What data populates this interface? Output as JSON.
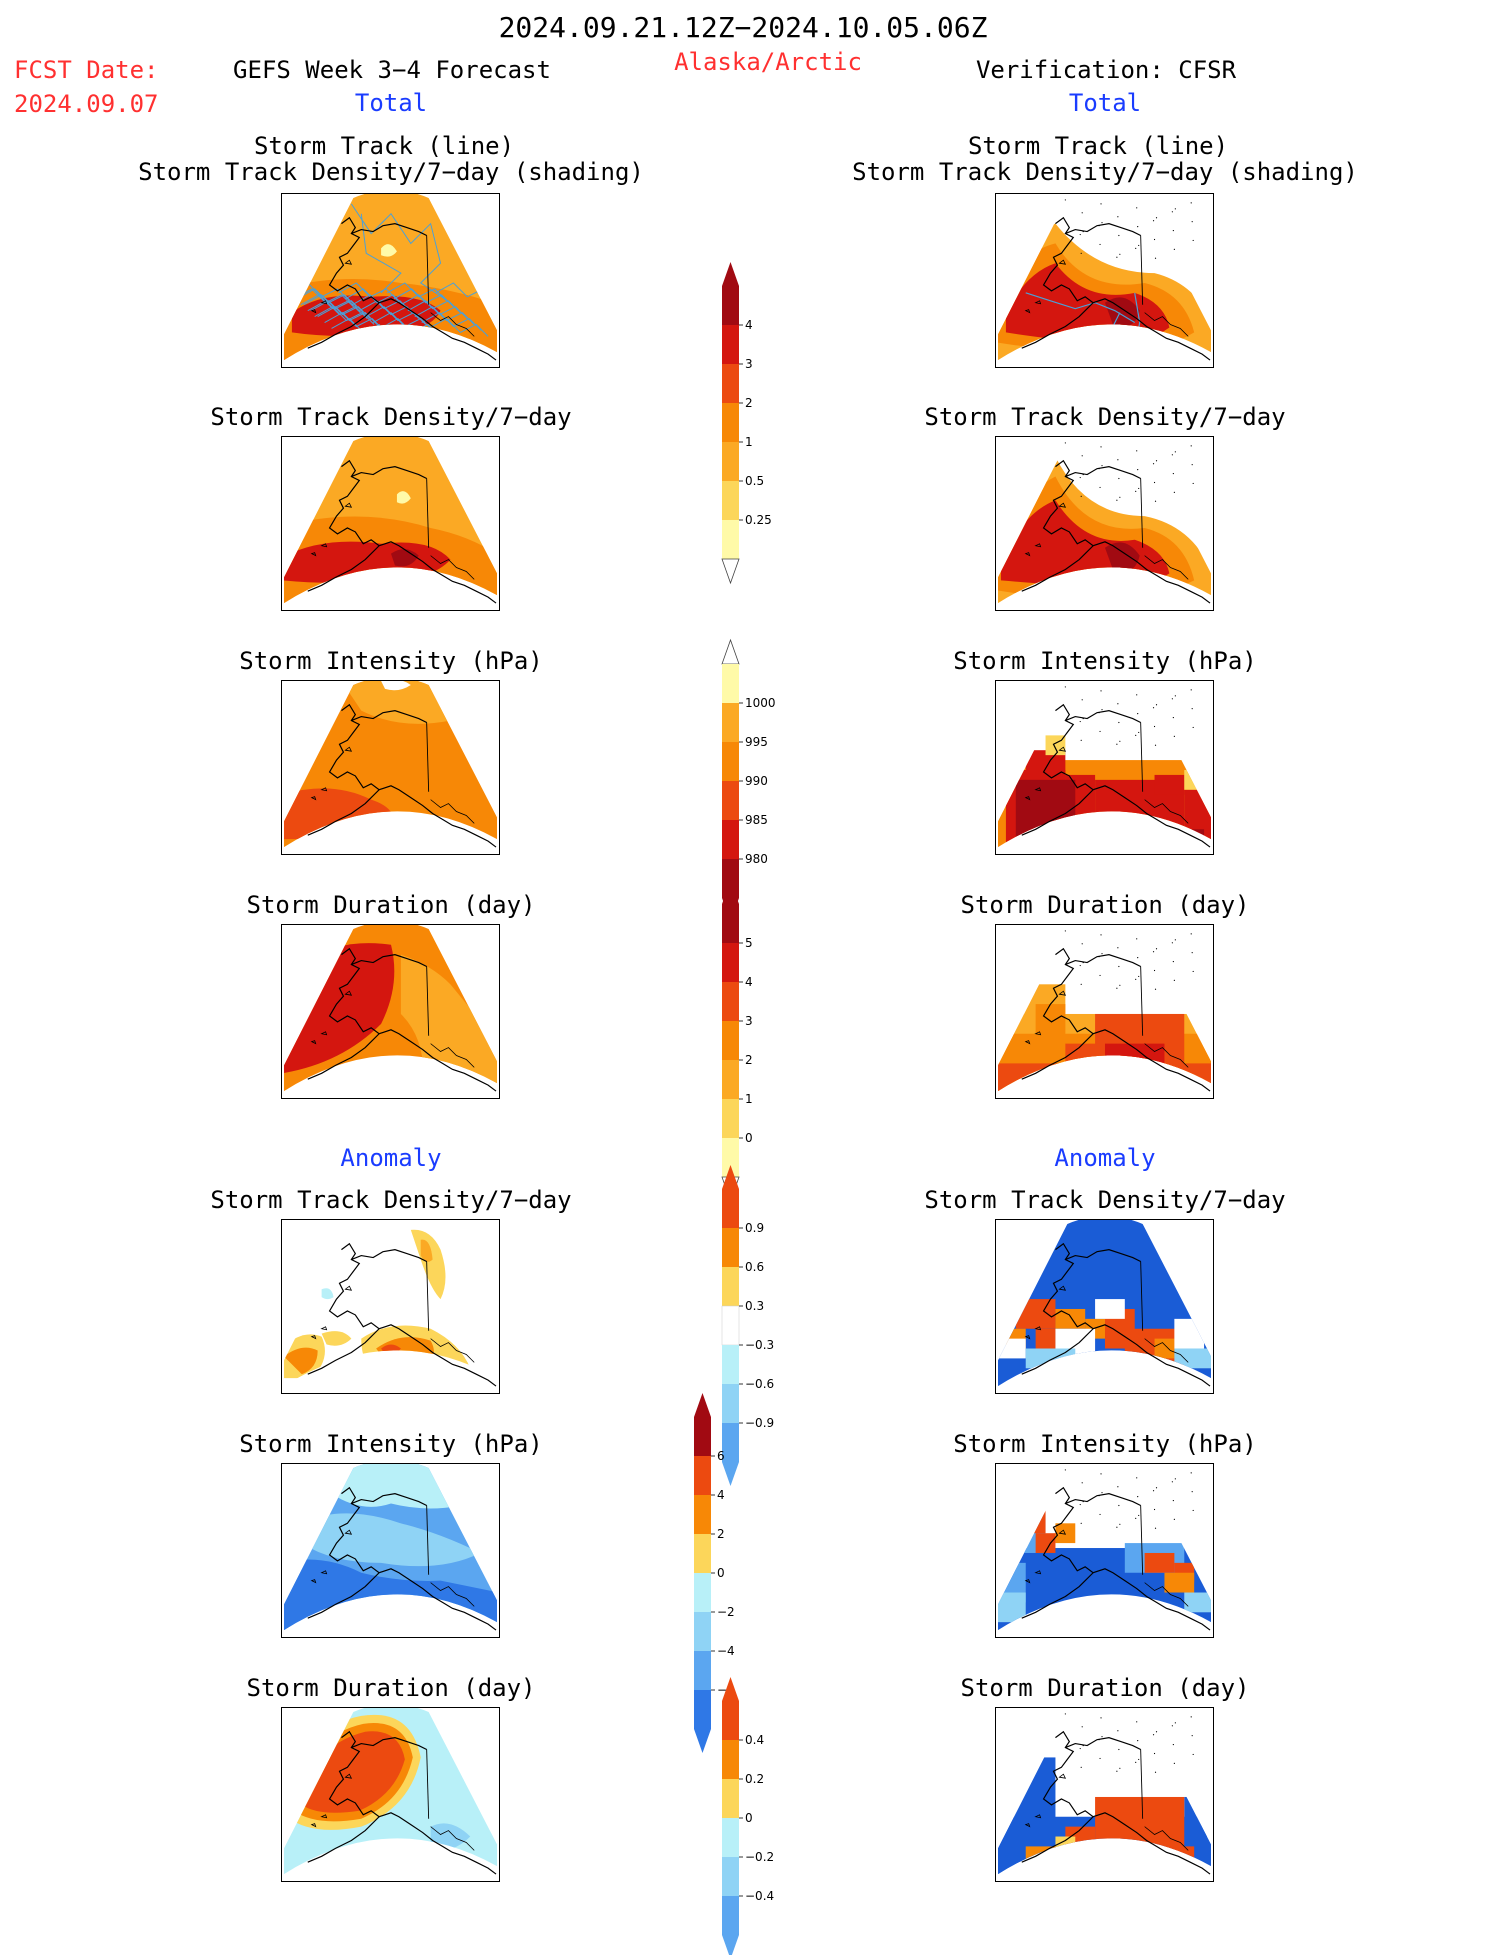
{
  "header": {
    "period": "2024.09.21.12Z−2024.10.05.06Z",
    "fcst_label": "FCST Date:",
    "fcst_date": "2024.09.07",
    "forecast_title": "GEFS Week 3−4 Forecast",
    "region": "Alaska/Arctic",
    "verification_title": "Verification: CFSR",
    "left_total": "Total",
    "right_total": "Total",
    "left_anomaly": "Anomaly",
    "right_anomaly": "Anomaly"
  },
  "titles": {
    "track_line": "Storm Track (line)",
    "track_shading": "Storm Track Density/7−day (shading)",
    "density": "Storm Track Density/7−day",
    "intensity": "Storm Intensity (hPa)",
    "duration": "Storm Duration (day)"
  },
  "colors": {
    "yellow_pale": "#fffaa8",
    "yellow": "#fcd65a",
    "orange_light": "#fba924",
    "orange": "#f78806",
    "red_orange": "#ec4a10",
    "red": "#d4160f",
    "dark_red": "#a10a12",
    "blue_pale": "#b8f0f8",
    "blue_light": "#8fd3f5",
    "blue_mid": "#5ba6f0",
    "blue": "#2f78e6",
    "blue_dark": "#1a5cd6",
    "track_line": "#4aa0d8"
  },
  "colorbars": [
    {
      "name": "density",
      "labels": [
        "4",
        "3",
        "2",
        "1",
        "0.5",
        "0.25"
      ]
    },
    {
      "name": "intensity",
      "labels": [
        "1000",
        "995",
        "990",
        "985",
        "980"
      ]
    },
    {
      "name": "duration",
      "labels": [
        "5",
        "4",
        "3",
        "2",
        "1",
        "0"
      ]
    },
    {
      "name": "density-anomaly",
      "labels": [
        "0.9",
        "0.6",
        "0.3",
        "−0.3",
        "−0.6",
        "−0.9"
      ]
    },
    {
      "name": "intensity-anomaly",
      "labels": [
        "6",
        "4",
        "2",
        "0",
        "−2",
        "−4",
        "−6"
      ]
    },
    {
      "name": "duration-anomaly",
      "labels": [
        "0.4",
        "0.2",
        "0",
        "−0.2",
        "−0.4"
      ]
    }
  ],
  "chart_data": {
    "type": "heatmap",
    "title": "2024.09.21.12Z−2024.10.05.06Z",
    "panels": [
      {
        "column": "GEFS Week 3−4 Forecast",
        "section": "Total",
        "field": "Storm Track (line) / Storm Track Density/7−day (shading)"
      },
      {
        "column": "GEFS Week 3−4 Forecast",
        "section": "Total",
        "field": "Storm Track Density/7−day"
      },
      {
        "column": "GEFS Week 3−4 Forecast",
        "section": "Total",
        "field": "Storm Intensity (hPa)"
      },
      {
        "column": "GEFS Week 3−4 Forecast",
        "section": "Total",
        "field": "Storm Duration (day)"
      },
      {
        "column": "GEFS Week 3−4 Forecast",
        "section": "Anomaly",
        "field": "Storm Track Density/7−day"
      },
      {
        "column": "GEFS Week 3−4 Forecast",
        "section": "Anomaly",
        "field": "Storm Intensity (hPa)"
      },
      {
        "column": "GEFS Week 3−4 Forecast",
        "section": "Anomaly",
        "field": "Storm Duration (day)"
      },
      {
        "column": "Verification: CFSR",
        "section": "Total",
        "field": "Storm Track (line) / Storm Track Density/7−day (shading)"
      },
      {
        "column": "Verification: CFSR",
        "section": "Total",
        "field": "Storm Track Density/7−day"
      },
      {
        "column": "Verification: CFSR",
        "section": "Total",
        "field": "Storm Intensity (hPa)"
      },
      {
        "column": "Verification: CFSR",
        "section": "Total",
        "field": "Storm Duration (day)"
      },
      {
        "column": "Verification: CFSR",
        "section": "Anomaly",
        "field": "Storm Track Density/7−day"
      },
      {
        "column": "Verification: CFSR",
        "section": "Anomaly",
        "field": "Storm Intensity (hPa)"
      },
      {
        "column": "Verification: CFSR",
        "section": "Anomaly",
        "field": "Storm Duration (day)"
      }
    ]
  }
}
